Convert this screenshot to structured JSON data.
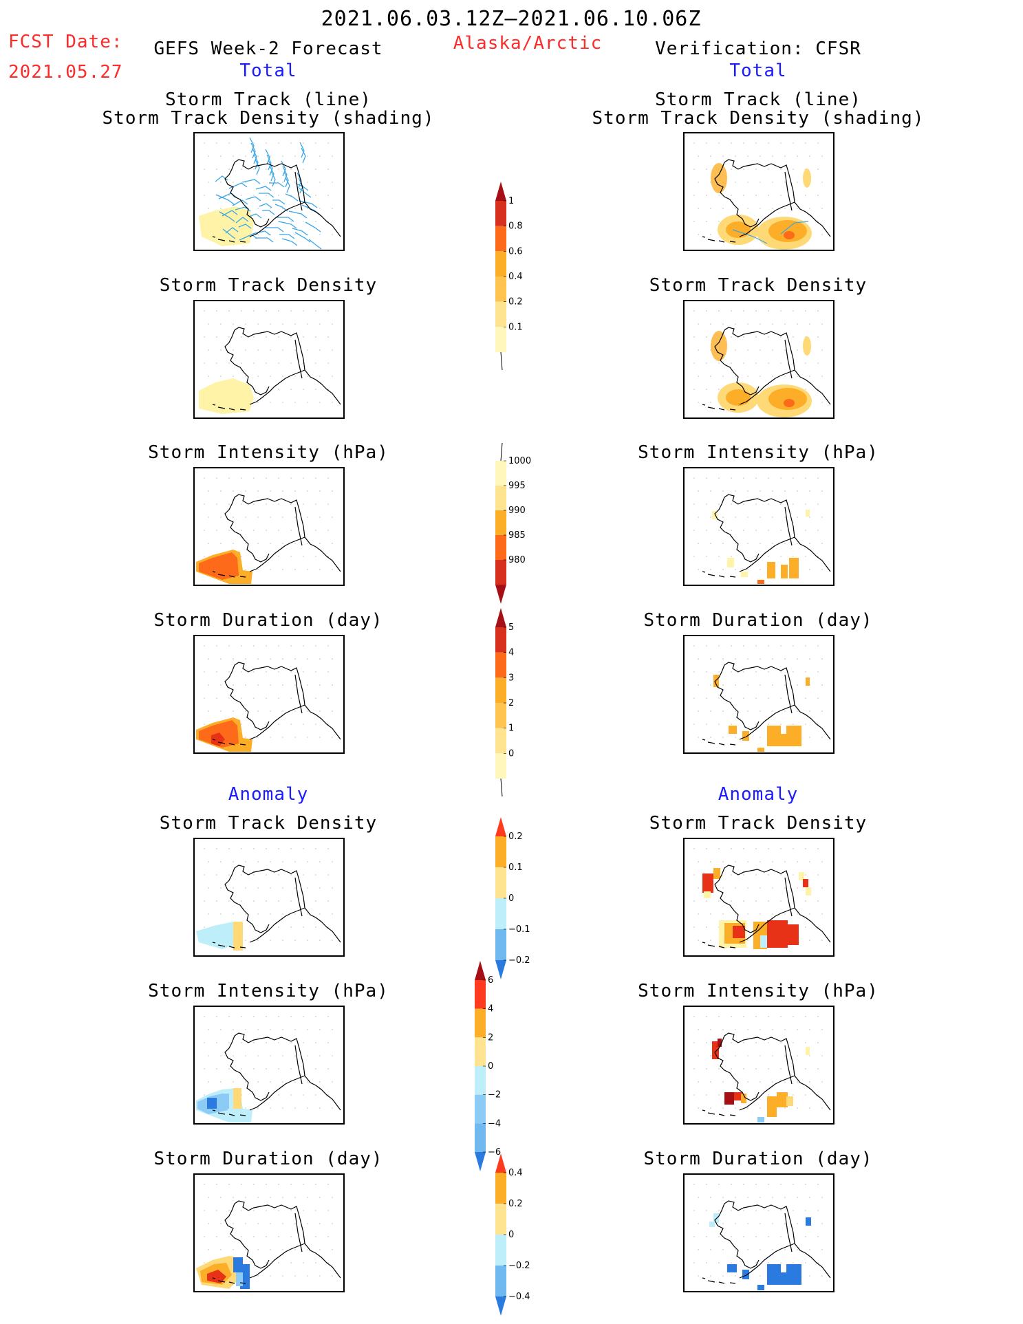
{
  "header": {
    "date_range": "2021.06.03.12Z–2021.06.10.06Z",
    "fcst_label": "FCST Date:",
    "fcst_date": "2021.05.27",
    "left_title": "GEFS Week-2 Forecast",
    "region": "Alaska/Arctic",
    "right_title": "Verification: CFSR"
  },
  "sections": {
    "total_left": "Total",
    "total_right": "Total",
    "anomaly_left": "Anomaly",
    "anomaly_right": "Anomaly"
  },
  "panel_titles": {
    "track": "Storm Track (line)\nStorm Track Density (shading)",
    "density": "Storm Track Density",
    "intensity": "Storm Intensity (hPa)",
    "duration": "Storm Duration (day)"
  },
  "colorbars": {
    "density_total": {
      "labels": [
        "1",
        "0.8",
        "0.6",
        "0.4",
        "0.2",
        "0.1"
      ],
      "colors": [
        "#a50f15",
        "#d7301f",
        "#fc6a1a",
        "#fdae28",
        "#fec44f",
        "#fee391",
        "#fff7bc"
      ]
    },
    "intensity_total": {
      "labels": [
        "1000",
        "995",
        "990",
        "985",
        "980"
      ],
      "colors": [
        "#fff7bc",
        "#fee391",
        "#fdae28",
        "#fc6a1a",
        "#d7301f",
        "#a50f15"
      ]
    },
    "duration_total": {
      "labels": [
        "5",
        "4",
        "3",
        "2",
        "1",
        "0"
      ],
      "colors": [
        "#a50f15",
        "#d7301f",
        "#fc6a1a",
        "#fdae28",
        "#fec44f",
        "#fee391",
        "#fff7bc"
      ]
    },
    "density_anom": {
      "labels": [
        "0.2",
        "0.1",
        "0",
        "−0.1",
        "−0.2"
      ],
      "colors": [
        "#ff3b1f",
        "#fdae28",
        "#fee391",
        "#bdeefa",
        "#6fb8f0",
        "#2b7ae0"
      ]
    },
    "intensity_anom": {
      "labels": [
        "6",
        "4",
        "2",
        "0",
        "−2",
        "−4",
        "−6"
      ],
      "colors": [
        "#a50f15",
        "#ff3b1f",
        "#fdae28",
        "#fee391",
        "#bdeefa",
        "#8ccbf5",
        "#6fb8f0",
        "#2b7ae0"
      ]
    },
    "duration_anom": {
      "labels": [
        "0.4",
        "0.2",
        "0",
        "−0.2",
        "−0.4"
      ],
      "colors": [
        "#ff3b1f",
        "#fdae28",
        "#fee391",
        "#bdeefa",
        "#6fb8f0",
        "#2b7ae0"
      ]
    }
  },
  "colors": {
    "red_text": "#ff2a2a",
    "blue_text": "#1a1aff",
    "track_line": "#3aa7e6"
  }
}
